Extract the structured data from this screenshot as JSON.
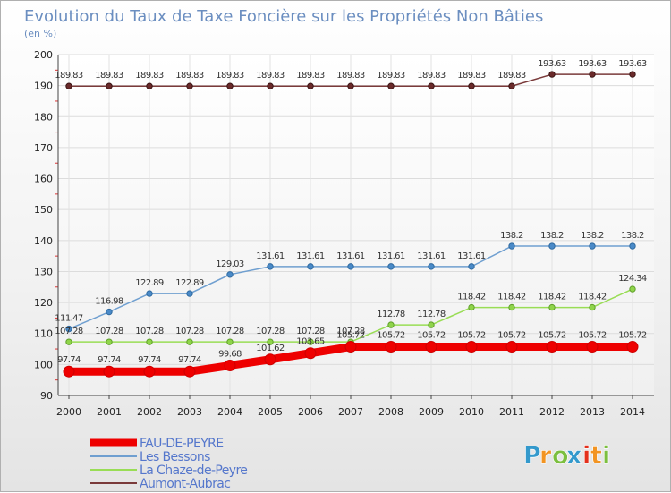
{
  "chart_data": {
    "type": "line",
    "title": "Evolution du Taux de Taxe Foncière sur les Propriétés Non Bâties",
    "subtitle": "(en %)",
    "xlabel": "",
    "ylabel": "",
    "ylim": [
      90,
      200
    ],
    "yticks": [
      90,
      100,
      110,
      120,
      130,
      140,
      150,
      160,
      170,
      180,
      190,
      200
    ],
    "x": [
      2000,
      2001,
      2002,
      2003,
      2004,
      2005,
      2006,
      2007,
      2008,
      2009,
      2010,
      2011,
      2012,
      2013,
      2014
    ],
    "grid": true,
    "legend_position": "bottom-left",
    "series": [
      {
        "name": "FAU-DE-PEYRE",
        "color": "#ee0000",
        "values": [
          97.74,
          97.74,
          97.74,
          97.74,
          99.68,
          101.62,
          103.65,
          105.72,
          105.72,
          105.72,
          105.72,
          105.72,
          105.72,
          105.72,
          105.72
        ],
        "labels": [
          "97.74",
          "97.74",
          "97.74",
          "97.74",
          "99.68",
          "101.62",
          "103.65",
          "105.72",
          "105.72",
          "105.72",
          "105.72",
          "105.72",
          "105.72",
          "105.72",
          "105.72"
        ]
      },
      {
        "name": "Les Bessons",
        "color": "#6f9fd0",
        "values": [
          111.47,
          116.98,
          122.89,
          122.89,
          129.03,
          131.61,
          131.61,
          131.61,
          131.61,
          131.61,
          131.61,
          138.2,
          138.2,
          138.2,
          138.2
        ],
        "labels": [
          "111.47",
          "116.98",
          "122.89",
          "122.89",
          "129.03",
          "131.61",
          "131.61",
          "131.61",
          "131.61",
          "131.61",
          "131.61",
          "138.2",
          "138.2",
          "138.2",
          "138.2"
        ]
      },
      {
        "name": "La Chaze-de-Peyre",
        "color": "#99dd55",
        "values": [
          107.28,
          107.28,
          107.28,
          107.28,
          107.28,
          107.28,
          107.28,
          107.28,
          112.78,
          112.78,
          118.42,
          118.42,
          118.42,
          118.42,
          124.34
        ],
        "labels": [
          "107.28",
          "107.28",
          "107.28",
          "107.28",
          "107.28",
          "107.28",
          "107.28",
          "107.28",
          "112.78",
          "112.78",
          "118.42",
          "118.42",
          "118.42",
          "118.42",
          "124.34"
        ]
      },
      {
        "name": "Aumont-Aubrac",
        "color": "#7a3a3a",
        "values": [
          189.83,
          189.83,
          189.83,
          189.83,
          189.83,
          189.83,
          189.83,
          189.83,
          189.83,
          189.83,
          189.83,
          189.83,
          193.63,
          193.63,
          193.63
        ],
        "labels": [
          "189.83",
          "189.83",
          "189.83",
          "189.83",
          "189.83",
          "189.83",
          "189.83",
          "189.83",
          "189.83",
          "189.83",
          "189.83",
          "189.83",
          "193.63",
          "193.63",
          "193.63"
        ]
      }
    ]
  },
  "logo": {
    "letters": [
      "P",
      "r",
      "o",
      "x",
      "i",
      "t",
      "i"
    ],
    "colors": [
      "#3399cc",
      "#f29422",
      "#7cbf3f",
      "#3399cc",
      "#e4301c",
      "#f29422",
      "#7cbf3f"
    ]
  }
}
